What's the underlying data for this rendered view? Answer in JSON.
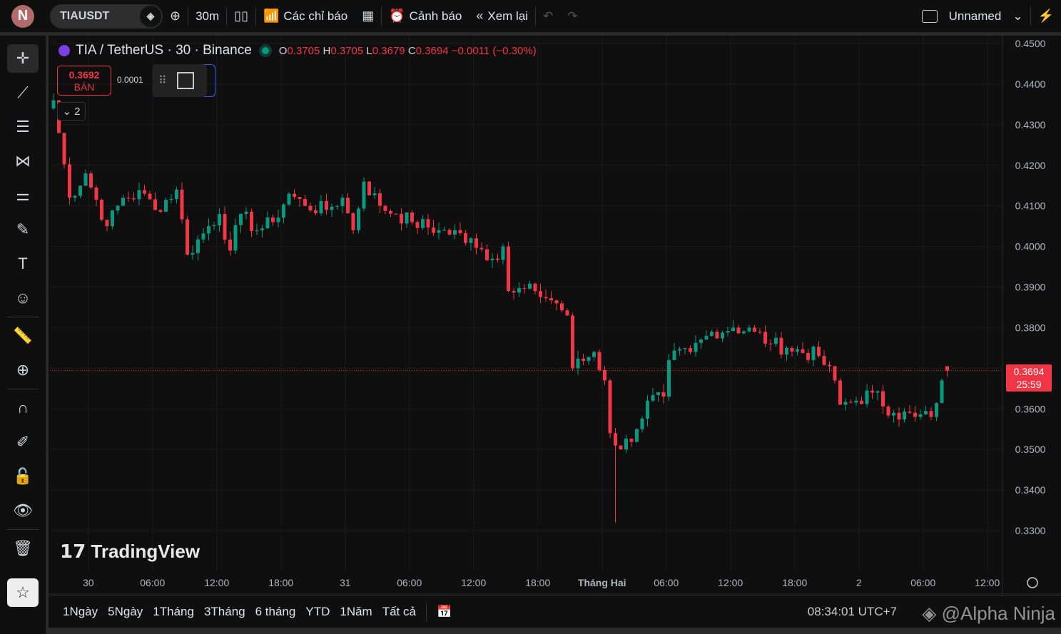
{
  "topbar": {
    "avatar": "N",
    "symbol": "TIAUSDT",
    "interval": "30m",
    "indicators": "Các chỉ báo",
    "alerts": "Cảnh báo",
    "replay": "Xem lại",
    "layout": "Unnamed"
  },
  "legend": {
    "title": "TIA / TetherUS · 30 · Binance",
    "o_label": "O",
    "o": "0.3705",
    "h_label": "H",
    "h": "0.3705",
    "l_label": "L",
    "l": "0.3679",
    "c_label": "C",
    "c": "0.3694",
    "change": "−0.0011 (−0.30%)"
  },
  "trade": {
    "sell_price": "0.3692",
    "sell_label": "BÁN",
    "spread": "0.0001"
  },
  "collapse": {
    "count": "2"
  },
  "logo": "TradingView",
  "current_price": {
    "price": "0.3694",
    "countdown": "25:59"
  },
  "bottom": {
    "ranges": [
      "1Ngày",
      "5Ngày",
      "1Tháng",
      "3Tháng",
      "6 tháng",
      "YTD",
      "1Năm",
      "Tất cả"
    ],
    "clock": "08:34:01 UTC+7"
  },
  "watermark": "@Alpha Ninja",
  "colors": {
    "up": "#089981",
    "down": "#f23645",
    "bg": "#0f0f0f",
    "grid": "#1e1e1e"
  },
  "chart_data": {
    "type": "candlestick",
    "y_ticks": [
      "0.4500",
      "0.4400",
      "0.4300",
      "0.4200",
      "0.4100",
      "0.4000",
      "0.3900",
      "0.3800",
      "0.3700",
      "0.3600",
      "0.3500",
      "0.3400",
      "0.3300"
    ],
    "ylim": [
      0.3277,
      0.4535
    ],
    "x_ticks": [
      {
        "label": "30",
        "idx": 6.5
      },
      {
        "label": "06:00",
        "idx": 18.5
      },
      {
        "label": "12:00",
        "idx": 30.5
      },
      {
        "label": "18:00",
        "idx": 42.5
      },
      {
        "label": "31",
        "idx": 54.5
      },
      {
        "label": "06:00",
        "idx": 66.5
      },
      {
        "label": "12:00",
        "idx": 78.5
      },
      {
        "label": "18:00",
        "idx": 90.5
      },
      {
        "label": "Tháng Hai",
        "idx": 102.5,
        "bold": true
      },
      {
        "label": "06:00",
        "idx": 114.5
      },
      {
        "label": "12:00",
        "idx": 126.5
      },
      {
        "label": "18:00",
        "idx": 138.5
      },
      {
        "label": "2",
        "idx": 150.5
      },
      {
        "label": "06:00",
        "idx": 162.5
      },
      {
        "label": "12:00",
        "idx": 174.5
      }
    ],
    "close_keypoints": [
      [
        0,
        0.436
      ],
      [
        3,
        0.412
      ],
      [
        6,
        0.418
      ],
      [
        10,
        0.405
      ],
      [
        13,
        0.412
      ],
      [
        17,
        0.413
      ],
      [
        19,
        0.409
      ],
      [
        23,
        0.414
      ],
      [
        25,
        0.398
      ],
      [
        29,
        0.405
      ],
      [
        31,
        0.408
      ],
      [
        33,
        0.399
      ],
      [
        35,
        0.408
      ],
      [
        38,
        0.404
      ],
      [
        41,
        0.406
      ],
      [
        44,
        0.413
      ],
      [
        47,
        0.41
      ],
      [
        51,
        0.409
      ],
      [
        54,
        0.412
      ],
      [
        56,
        0.404
      ],
      [
        58,
        0.416
      ],
      [
        61,
        0.41
      ],
      [
        64,
        0.408
      ],
      [
        67,
        0.406
      ],
      [
        72,
        0.404
      ],
      [
        78,
        0.402
      ],
      [
        82,
        0.397
      ],
      [
        84,
        0.4
      ],
      [
        85,
        0.389
      ],
      [
        90,
        0.389
      ],
      [
        94,
        0.386
      ],
      [
        96,
        0.383
      ],
      [
        97,
        0.37
      ],
      [
        101,
        0.374
      ],
      [
        103,
        0.367
      ],
      [
        104,
        0.354
      ],
      [
        106,
        0.35
      ],
      [
        109,
        0.355
      ],
      [
        111,
        0.362
      ],
      [
        114,
        0.363
      ],
      [
        115,
        0.372
      ],
      [
        119,
        0.374
      ],
      [
        123,
        0.379
      ],
      [
        127,
        0.38
      ],
      [
        131,
        0.379
      ],
      [
        134,
        0.376
      ],
      [
        137,
        0.375
      ],
      [
        143,
        0.373
      ],
      [
        146,
        0.367
      ],
      [
        147,
        0.361
      ],
      [
        150,
        0.362
      ],
      [
        153,
        0.364
      ],
      [
        157,
        0.359
      ],
      [
        161,
        0.358
      ],
      [
        164,
        0.358
      ],
      [
        166,
        0.367
      ],
      [
        167,
        0.3694
      ]
    ],
    "last": {
      "open": 0.3705,
      "high": 0.3705,
      "low": 0.3679,
      "close": 0.3694
    }
  }
}
